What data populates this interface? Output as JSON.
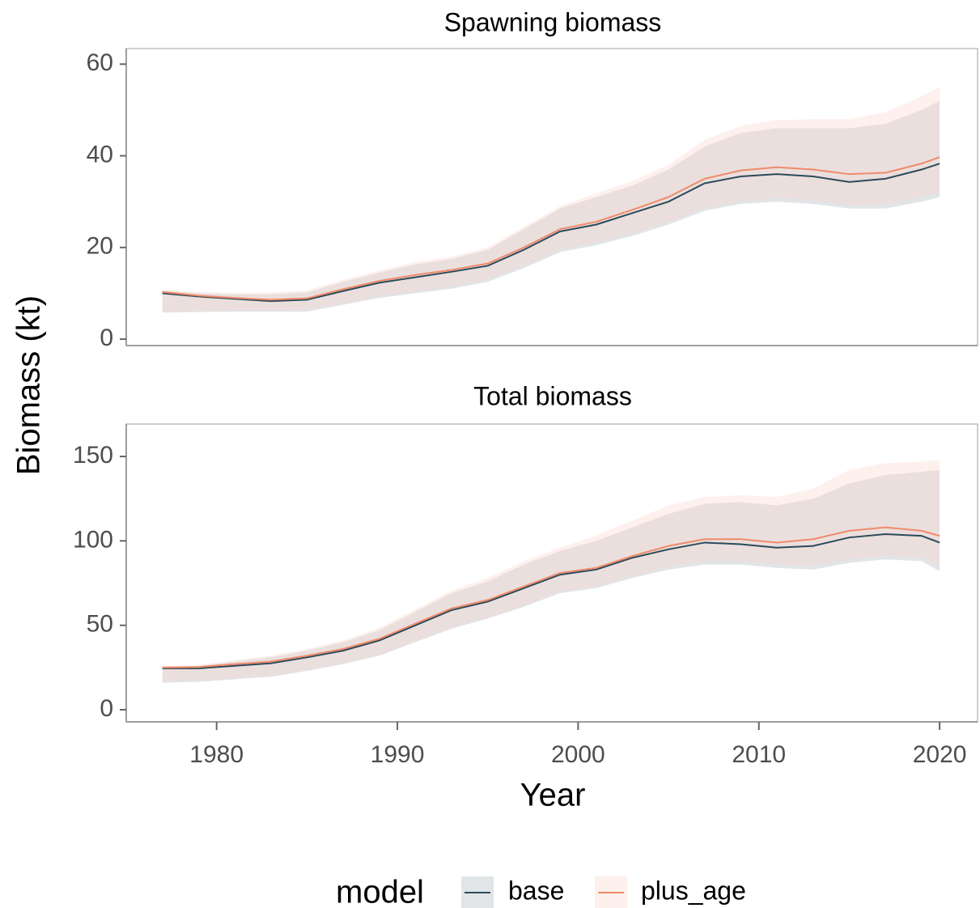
{
  "ylabel": "Biomass (kt)",
  "xlabel": "Year",
  "legend_title": "model",
  "chart_data": [
    {
      "type": "line",
      "title": "Spawning biomass",
      "x": [
        1977,
        1979,
        1981,
        1983,
        1985,
        1987,
        1989,
        1991,
        1993,
        1995,
        1997,
        1999,
        2001,
        2003,
        2005,
        2007,
        2009,
        2011,
        2013,
        2015,
        2017,
        2019,
        2020
      ],
      "xlim": [
        1975,
        2022.1
      ],
      "ylim": [
        -1.4,
        63.4
      ],
      "yticks": [
        0,
        20,
        40,
        60
      ],
      "series": [
        {
          "name": "base",
          "color": "#2b4a5a",
          "band_color": "#a9b4bd",
          "values": [
            10,
            9.3,
            8.8,
            8.3,
            8.6,
            10.5,
            12.3,
            13.5,
            14.7,
            16,
            19.5,
            23.5,
            25,
            27.5,
            30,
            34,
            35.5,
            36,
            35.5,
            34.3,
            35,
            37,
            38.3
          ],
          "lower": [
            5.8,
            5.9,
            6,
            6,
            6,
            7.5,
            9,
            10,
            11,
            12.5,
            15.5,
            19,
            20.5,
            22.5,
            25,
            28,
            29.5,
            30,
            29.5,
            28.5,
            28.5,
            30,
            31
          ],
          "upper": [
            10.5,
            10,
            9.8,
            9.8,
            10.2,
            12.5,
            14.5,
            16.3,
            17.5,
            19.5,
            24,
            28.5,
            31,
            33.5,
            37,
            42,
            45,
            46,
            46,
            46,
            47,
            50,
            52
          ]
        },
        {
          "name": "plus_age",
          "color": "#f08a6a",
          "band_color": "#fcd3c8",
          "values": [
            10.3,
            9.5,
            9,
            8.6,
            8.9,
            10.9,
            12.7,
            14,
            15.1,
            16.5,
            20,
            24,
            25.6,
            28.2,
            31,
            35,
            36.8,
            37.5,
            37,
            36,
            36.3,
            38.3,
            39.7
          ],
          "lower": [
            6,
            6.1,
            6.2,
            6.2,
            6.3,
            7.8,
            9.3,
            10.4,
            11.4,
            13,
            16,
            19.5,
            21,
            23,
            25.5,
            28.5,
            30,
            30.8,
            30.3,
            29.2,
            29.3,
            31,
            32
          ],
          "upper": [
            10.8,
            10.3,
            10.1,
            10.2,
            10.6,
            13,
            15,
            16.8,
            18,
            20,
            24.5,
            29,
            31.8,
            34.5,
            38,
            43.5,
            46.5,
            47.8,
            48,
            48,
            49.5,
            53,
            55
          ]
        }
      ]
    },
    {
      "type": "line",
      "title": "Total biomass",
      "x": [
        1977,
        1979,
        1981,
        1983,
        1985,
        1987,
        1989,
        1991,
        1993,
        1995,
        1997,
        1999,
        2001,
        2003,
        2005,
        2007,
        2009,
        2011,
        2013,
        2015,
        2017,
        2019,
        2020
      ],
      "xlim": [
        1975,
        2022.1
      ],
      "xticks": [
        1980,
        1990,
        2000,
        2010,
        2020
      ],
      "ylim": [
        -7.2,
        169.2
      ],
      "yticks": [
        0,
        50,
        100,
        150
      ],
      "series": [
        {
          "name": "base",
          "color": "#2b4a5a",
          "band_color": "#a9b4bd",
          "values": [
            24.5,
            24.5,
            26,
            27.5,
            31,
            35,
            41,
            50,
            59,
            64,
            72,
            80,
            83,
            90,
            95,
            99,
            98,
            96,
            97,
            102,
            104,
            103,
            99
          ],
          "lower": [
            16,
            16.5,
            18,
            19.5,
            23,
            27,
            32,
            40,
            48,
            54,
            61,
            69,
            72,
            78,
            83,
            86,
            86,
            84,
            83,
            87,
            89,
            88,
            82
          ],
          "upper": [
            25.5,
            26,
            28.5,
            31,
            35,
            40,
            47,
            58,
            69,
            76,
            86,
            94,
            100,
            108,
            116,
            122,
            123,
            121,
            125,
            134,
            139,
            141,
            142
          ]
        },
        {
          "name": "plus_age",
          "color": "#f08a6a",
          "band_color": "#fcd3c8",
          "values": [
            25,
            25.3,
            27,
            28.5,
            32,
            36,
            42,
            51,
            60,
            65,
            73,
            81,
            84,
            91,
            97,
            101,
            101,
            99,
            101,
            106,
            108,
            106,
            103
          ],
          "lower": [
            16.5,
            17,
            18.5,
            20,
            23.5,
            27.5,
            32.5,
            40.5,
            48.5,
            54.5,
            61.5,
            70,
            73,
            79,
            84.5,
            88,
            88,
            86,
            85,
            89,
            91,
            90,
            85
          ],
          "upper": [
            26,
            26.5,
            29.5,
            32,
            36,
            41,
            48.5,
            59.5,
            70.5,
            78,
            88,
            96,
            103,
            112,
            121,
            126,
            127,
            126,
            131,
            142,
            146,
            147,
            148
          ]
        }
      ]
    }
  ]
}
